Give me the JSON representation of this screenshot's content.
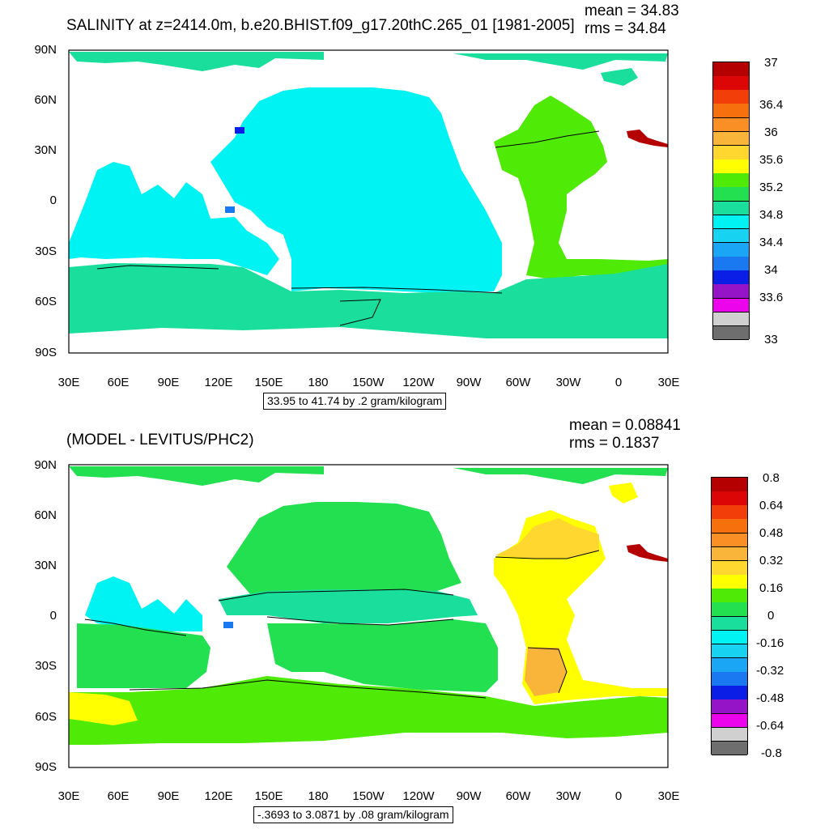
{
  "colors": {
    "land": "#ffffff",
    "levels_top": [
      "#6e6e6e",
      "#d0d0d0",
      "#ec05ec",
      "#9514c7",
      "#0a1ee6",
      "#1a78f0",
      "#1ba6f5",
      "#17d2f0",
      "#00f3f3",
      "#1adf9c",
      "#22e050",
      "#4fea06",
      "#ffff00",
      "#ffd72e",
      "#f9b539",
      "#f98f25",
      "#f7700e",
      "#f23e09",
      "#dc0606",
      "#b40000"
    ],
    "levels_bottom": [
      "#6e6e6e",
      "#d0d0d0",
      "#ec05ec",
      "#9514c7",
      "#0a1ee6",
      "#1a78f0",
      "#1ba6f5",
      "#17d2f0",
      "#00f3f3",
      "#1adf9c",
      "#22e050",
      "#4fea06",
      "#ffff00",
      "#ffd72e",
      "#f9b539",
      "#f98f25",
      "#f7700e",
      "#f23e09",
      "#dc0606",
      "#b40000"
    ]
  },
  "lat_labels": [
    "90N",
    "60N",
    "30N",
    "0",
    "30S",
    "60S",
    "90S"
  ],
  "lon_labels": [
    "30E",
    "60E",
    "90E",
    "120E",
    "150E",
    "180",
    "150W",
    "120W",
    "90W",
    "60W",
    "30W",
    "0",
    "30E"
  ],
  "top": {
    "title": "SALINITY at z=2414.0m, b.e20.BHIST.f09_g17.20thC.265_01 [1981-2005]",
    "mean": "mean = 34.83",
    "rms": "rms = 34.84",
    "range": "33.95 to 41.74 by .2 gram/kilogram",
    "colorbar_labels": [
      "37",
      "36.4",
      "36",
      "35.6",
      "35.2",
      "34.8",
      "34.4",
      "34",
      "33.6",
      "33"
    ]
  },
  "bottom": {
    "title": "(MODEL - LEVITUS/PHC2)",
    "mean": "mean = 0.08841",
    "rms": "rms = 0.1837",
    "range": "-.3693 to 3.0871 by .08 gram/kilogram",
    "colorbar_labels": [
      "0.8",
      "0.64",
      "0.48",
      "0.32",
      "0.16",
      "0",
      "-0.16",
      "-0.32",
      "-0.48",
      "-0.64",
      "-0.8"
    ]
  }
}
